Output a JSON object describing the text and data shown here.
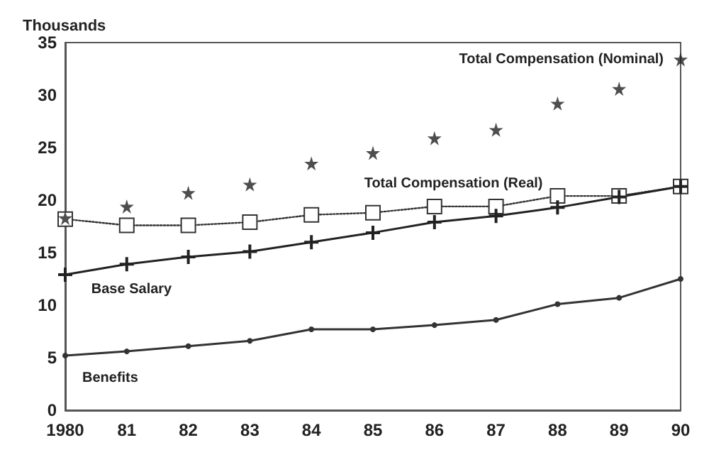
{
  "chart_data": {
    "type": "line",
    "ylabel": "Thousands",
    "categories": [
      "1980",
      "81",
      "82",
      "83",
      "84",
      "85",
      "86",
      "87",
      "88",
      "89",
      "90"
    ],
    "ylim": [
      0,
      35
    ],
    "yticks": [
      0,
      5,
      10,
      15,
      20,
      25,
      30,
      35
    ],
    "grid": false,
    "legend": false,
    "series": [
      {
        "name": "Total Compensation (Nominal)",
        "type": "scatter",
        "marker": "star",
        "color": "#222222",
        "values": [
          18.3,
          19.4,
          20.7,
          21.5,
          23.5,
          24.5,
          25.9,
          26.7,
          29.2,
          30.6,
          33.4
        ]
      },
      {
        "name": "Total Compensation (Real)",
        "marker": "square",
        "line_style": "dotted",
        "color": "#333333",
        "values": [
          18.2,
          17.6,
          17.6,
          17.9,
          18.6,
          18.8,
          19.4,
          19.4,
          20.4,
          20.4,
          21.3
        ]
      },
      {
        "name": "Base Salary",
        "marker": "cross",
        "line_style": "solid",
        "color": "#222222",
        "values": [
          12.9,
          13.9,
          14.6,
          15.1,
          16.0,
          16.9,
          17.9,
          18.5,
          19.3,
          20.3,
          21.3
        ]
      },
      {
        "name": "Benefits",
        "marker": "circle",
        "line_style": "solid",
        "color": "#333333",
        "values": [
          5.2,
          5.6,
          6.1,
          6.6,
          7.7,
          7.7,
          8.1,
          8.6,
          10.1,
          10.7,
          12.5
        ]
      }
    ]
  }
}
